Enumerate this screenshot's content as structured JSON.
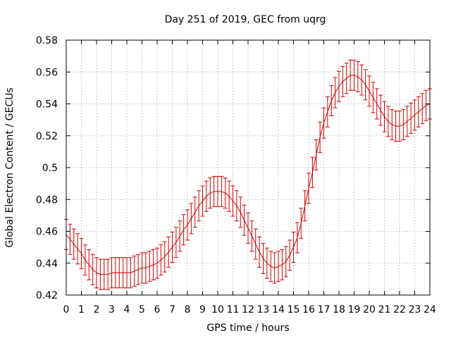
{
  "chart_data": {
    "type": "line",
    "title": "Day 251 of 2019, GEC from uqrg",
    "xlabel": "GPS time / hours",
    "ylabel": "Global Electron Content / GECUs",
    "xlim": [
      0,
      24
    ],
    "ylim": [
      0.42,
      0.58
    ],
    "grid": true,
    "xticks": [
      0,
      1,
      2,
      3,
      4,
      5,
      6,
      7,
      8,
      9,
      10,
      11,
      12,
      13,
      14,
      15,
      16,
      17,
      18,
      19,
      20,
      21,
      22,
      23,
      24
    ],
    "yticks": [
      0.42,
      0.44,
      0.46,
      0.48,
      0.5,
      0.52,
      0.54,
      0.56,
      0.58
    ],
    "xtick_labels": [
      "0",
      "1",
      "2",
      "3",
      "4",
      "5",
      "6",
      "7",
      "8",
      "9",
      "10",
      "11",
      "12",
      "13",
      "14",
      "15",
      "16",
      "17",
      "18",
      "19",
      "20",
      "21",
      "22",
      "23",
      "24"
    ],
    "ytick_labels": [
      "0.42",
      "0.44",
      "0.46",
      "0.48",
      "0.5",
      "0.52",
      "0.54",
      "0.56",
      "0.58"
    ],
    "series": [
      {
        "name": "GEC",
        "color": "#cc0000",
        "error": 0.0095,
        "x": [
          0,
          0.25,
          0.5,
          0.75,
          1,
          1.25,
          1.5,
          1.75,
          2,
          2.25,
          2.5,
          2.75,
          3,
          3.25,
          3.5,
          3.75,
          4,
          4.25,
          4.5,
          4.75,
          5,
          5.25,
          5.5,
          5.75,
          6,
          6.25,
          6.5,
          6.75,
          7,
          7.25,
          7.5,
          7.75,
          8,
          8.25,
          8.5,
          8.75,
          9,
          9.25,
          9.5,
          9.75,
          10,
          10.25,
          10.5,
          10.75,
          11,
          11.25,
          11.5,
          11.75,
          12,
          12.25,
          12.5,
          12.75,
          13,
          13.25,
          13.5,
          13.75,
          14,
          14.25,
          14.5,
          14.75,
          15,
          15.25,
          15.5,
          15.75,
          16,
          16.25,
          16.5,
          16.75,
          17,
          17.25,
          17.5,
          17.75,
          18,
          18.25,
          18.5,
          18.75,
          19,
          19.25,
          19.5,
          19.75,
          20,
          20.25,
          20.5,
          20.75,
          21,
          21.25,
          21.5,
          21.75,
          22,
          22.25,
          22.5,
          22.75,
          23,
          23.25,
          23.5,
          23.75,
          24
        ],
        "values": [
          0.458,
          0.455,
          0.452,
          0.449,
          0.446,
          0.442,
          0.439,
          0.436,
          0.434,
          0.433,
          0.433,
          0.433,
          0.434,
          0.434,
          0.434,
          0.434,
          0.434,
          0.434,
          0.435,
          0.436,
          0.437,
          0.437,
          0.438,
          0.439,
          0.44,
          0.442,
          0.444,
          0.447,
          0.45,
          0.453,
          0.457,
          0.461,
          0.464,
          0.468,
          0.472,
          0.476,
          0.479,
          0.482,
          0.484,
          0.485,
          0.485,
          0.485,
          0.484,
          0.482,
          0.479,
          0.476,
          0.472,
          0.467,
          0.462,
          0.457,
          0.452,
          0.447,
          0.443,
          0.44,
          0.438,
          0.437,
          0.438,
          0.439,
          0.441,
          0.445,
          0.45,
          0.456,
          0.465,
          0.476,
          0.487,
          0.497,
          0.508,
          0.519,
          0.528,
          0.535,
          0.542,
          0.547,
          0.551,
          0.554,
          0.556,
          0.558,
          0.558,
          0.557,
          0.555,
          0.552,
          0.548,
          0.544,
          0.54,
          0.536,
          0.532,
          0.529,
          0.527,
          0.526,
          0.526,
          0.527,
          0.529,
          0.531,
          0.533,
          0.535,
          0.537,
          0.539,
          0.54
        ]
      }
    ]
  }
}
